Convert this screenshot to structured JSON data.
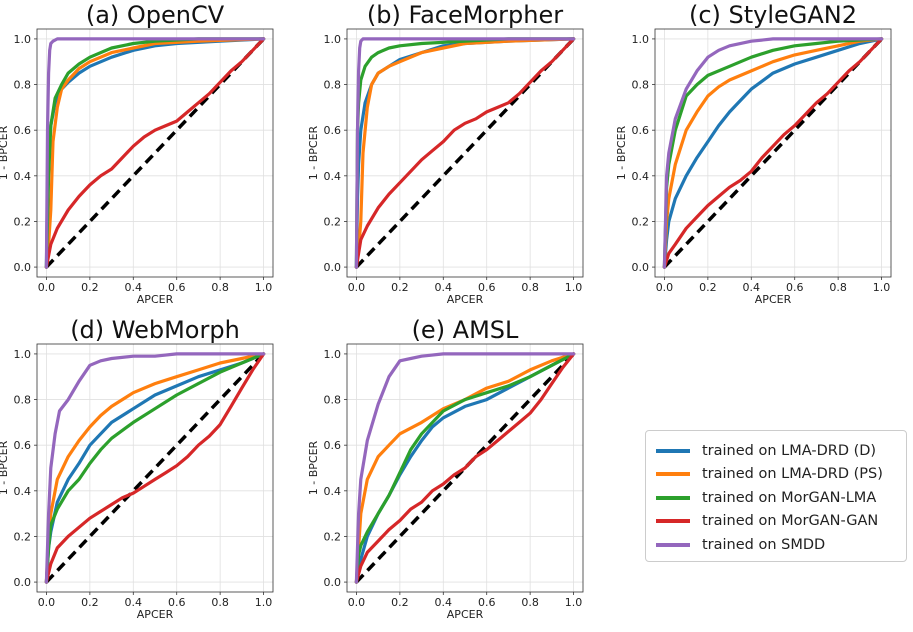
{
  "figure": {
    "xlabel": "APCER",
    "ylabel": "1 - BPCER",
    "ticks": [
      "0.0",
      "0.2",
      "0.4",
      "0.6",
      "0.8",
      "1.0"
    ]
  },
  "legend": [
    {
      "label": "trained on LMA-DRD (D)",
      "color": "#1f77b4"
    },
    {
      "label": "trained on LMA-DRD (PS)",
      "color": "#ff7f0e"
    },
    {
      "label": "trained on MorGAN-LMA",
      "color": "#2ca02c"
    },
    {
      "label": "trained on MorGAN-GAN",
      "color": "#d62728"
    },
    {
      "label": "trained on SMDD",
      "color": "#9467bd"
    }
  ],
  "chart_data": [
    {
      "type": "line",
      "title": "(a) OpenCV",
      "xlabel": "APCER",
      "ylabel": "1 - BPCER",
      "xlim": [
        0,
        1
      ],
      "ylim": [
        0,
        1
      ],
      "series": [
        {
          "name": "trained on LMA-DRD (D)",
          "color": "#1f77b4",
          "x": [
            0,
            0.005,
            0.01,
            0.02,
            0.04,
            0.07,
            0.1,
            0.15,
            0.2,
            0.3,
            0.4,
            0.5,
            0.6,
            0.8,
            1.0
          ],
          "y": [
            0,
            0.35,
            0.5,
            0.62,
            0.72,
            0.78,
            0.81,
            0.85,
            0.88,
            0.92,
            0.95,
            0.97,
            0.98,
            0.99,
            1.0
          ]
        },
        {
          "name": "trained on LMA-DRD (PS)",
          "color": "#ff7f0e",
          "x": [
            0,
            0.01,
            0.02,
            0.03,
            0.05,
            0.07,
            0.1,
            0.15,
            0.2,
            0.3,
            0.4,
            0.5,
            0.7,
            1.0
          ],
          "y": [
            0,
            0.1,
            0.25,
            0.55,
            0.7,
            0.78,
            0.82,
            0.87,
            0.9,
            0.94,
            0.96,
            0.98,
            0.99,
            1.0
          ]
        },
        {
          "name": "trained on MorGAN-LMA",
          "color": "#2ca02c",
          "x": [
            0,
            0.01,
            0.02,
            0.04,
            0.07,
            0.1,
            0.15,
            0.2,
            0.3,
            0.4,
            0.5,
            0.7,
            1.0
          ],
          "y": [
            0,
            0.4,
            0.62,
            0.74,
            0.8,
            0.85,
            0.89,
            0.92,
            0.96,
            0.98,
            0.99,
            1.0,
            1.0
          ]
        },
        {
          "name": "trained on MorGAN-GAN",
          "color": "#d62728",
          "x": [
            0,
            0.02,
            0.05,
            0.1,
            0.15,
            0.2,
            0.25,
            0.3,
            0.35,
            0.4,
            0.45,
            0.5,
            0.55,
            0.6,
            0.65,
            0.7,
            0.75,
            0.8,
            0.85,
            0.9,
            0.95,
            1.0
          ],
          "y": [
            0,
            0.1,
            0.17,
            0.25,
            0.31,
            0.36,
            0.4,
            0.43,
            0.48,
            0.53,
            0.57,
            0.6,
            0.62,
            0.64,
            0.68,
            0.72,
            0.76,
            0.81,
            0.86,
            0.9,
            0.95,
            1.0
          ]
        },
        {
          "name": "trained on SMDD",
          "color": "#9467bd",
          "x": [
            0,
            0.005,
            0.01,
            0.015,
            0.02,
            0.03,
            0.05,
            0.1,
            0.3,
            1.0
          ],
          "y": [
            0,
            0.6,
            0.85,
            0.95,
            0.98,
            0.99,
            1.0,
            1.0,
            1.0,
            1.0
          ]
        }
      ]
    },
    {
      "type": "line",
      "title": "(b) FaceMorpher",
      "xlabel": "APCER",
      "ylabel": "1 - BPCER",
      "xlim": [
        0,
        1
      ],
      "ylim": [
        0,
        1
      ],
      "series": [
        {
          "name": "trained on LMA-DRD (D)",
          "color": "#1f77b4",
          "x": [
            0,
            0.005,
            0.01,
            0.02,
            0.04,
            0.07,
            0.1,
            0.15,
            0.2,
            0.3,
            0.4,
            0.5,
            0.7,
            1.0
          ],
          "y": [
            0,
            0.3,
            0.45,
            0.6,
            0.72,
            0.8,
            0.85,
            0.88,
            0.91,
            0.94,
            0.97,
            0.98,
            0.99,
            1.0
          ]
        },
        {
          "name": "trained on LMA-DRD (PS)",
          "color": "#ff7f0e",
          "x": [
            0,
            0.01,
            0.02,
            0.03,
            0.05,
            0.07,
            0.1,
            0.15,
            0.2,
            0.3,
            0.4,
            0.5,
            0.7,
            1.0
          ],
          "y": [
            0,
            0.08,
            0.2,
            0.5,
            0.7,
            0.8,
            0.85,
            0.88,
            0.9,
            0.94,
            0.96,
            0.98,
            0.99,
            1.0
          ]
        },
        {
          "name": "trained on MorGAN-LMA",
          "color": "#2ca02c",
          "x": [
            0,
            0.005,
            0.01,
            0.02,
            0.04,
            0.07,
            0.1,
            0.15,
            0.2,
            0.3,
            0.5,
            0.7,
            1.0
          ],
          "y": [
            0,
            0.6,
            0.72,
            0.82,
            0.88,
            0.92,
            0.94,
            0.96,
            0.97,
            0.98,
            0.99,
            1.0,
            1.0
          ]
        },
        {
          "name": "trained on MorGAN-GAN",
          "color": "#d62728",
          "x": [
            0,
            0.02,
            0.05,
            0.1,
            0.15,
            0.2,
            0.25,
            0.3,
            0.35,
            0.4,
            0.45,
            0.5,
            0.55,
            0.6,
            0.65,
            0.7,
            0.75,
            0.8,
            0.85,
            0.9,
            0.95,
            1.0
          ],
          "y": [
            0,
            0.12,
            0.18,
            0.26,
            0.32,
            0.37,
            0.42,
            0.47,
            0.51,
            0.55,
            0.6,
            0.63,
            0.65,
            0.68,
            0.7,
            0.72,
            0.76,
            0.81,
            0.86,
            0.9,
            0.95,
            1.0
          ]
        },
        {
          "name": "trained on SMDD",
          "color": "#9467bd",
          "x": [
            0,
            0.005,
            0.01,
            0.015,
            0.02,
            0.03,
            0.05,
            0.1,
            0.3,
            1.0
          ],
          "y": [
            0,
            0.6,
            0.86,
            0.96,
            0.99,
            1.0,
            1.0,
            1.0,
            1.0,
            1.0
          ]
        }
      ]
    },
    {
      "type": "line",
      "title": "(c) StyleGAN2",
      "xlabel": "APCER",
      "ylabel": "1 - BPCER",
      "xlim": [
        0,
        1
      ],
      "ylim": [
        0,
        1
      ],
      "series": [
        {
          "name": "trained on LMA-DRD (D)",
          "color": "#1f77b4",
          "x": [
            0,
            0.01,
            0.02,
            0.05,
            0.1,
            0.15,
            0.2,
            0.25,
            0.3,
            0.35,
            0.4,
            0.5,
            0.6,
            0.7,
            0.8,
            0.9,
            1.0
          ],
          "y": [
            0,
            0.12,
            0.2,
            0.3,
            0.4,
            0.48,
            0.55,
            0.62,
            0.68,
            0.73,
            0.78,
            0.85,
            0.89,
            0.92,
            0.95,
            0.98,
            1.0
          ]
        },
        {
          "name": "trained on LMA-DRD (PS)",
          "color": "#ff7f0e",
          "x": [
            0,
            0.01,
            0.02,
            0.05,
            0.1,
            0.15,
            0.2,
            0.25,
            0.3,
            0.4,
            0.5,
            0.6,
            0.7,
            0.8,
            0.9,
            1.0
          ],
          "y": [
            0,
            0.2,
            0.3,
            0.45,
            0.6,
            0.68,
            0.75,
            0.79,
            0.82,
            0.86,
            0.9,
            0.93,
            0.95,
            0.97,
            0.99,
            1.0
          ]
        },
        {
          "name": "trained on MorGAN-LMA",
          "color": "#2ca02c",
          "x": [
            0,
            0.01,
            0.02,
            0.05,
            0.1,
            0.15,
            0.2,
            0.3,
            0.4,
            0.5,
            0.6,
            0.7,
            0.8,
            1.0
          ],
          "y": [
            0,
            0.35,
            0.45,
            0.6,
            0.75,
            0.8,
            0.84,
            0.88,
            0.92,
            0.95,
            0.97,
            0.98,
            0.99,
            1.0
          ]
        },
        {
          "name": "trained on MorGAN-GAN",
          "color": "#d62728",
          "x": [
            0,
            0.02,
            0.05,
            0.1,
            0.15,
            0.2,
            0.25,
            0.3,
            0.35,
            0.4,
            0.45,
            0.5,
            0.55,
            0.6,
            0.65,
            0.7,
            0.75,
            0.8,
            0.85,
            0.9,
            0.95,
            1.0
          ],
          "y": [
            0,
            0.06,
            0.1,
            0.17,
            0.22,
            0.27,
            0.31,
            0.35,
            0.38,
            0.42,
            0.48,
            0.53,
            0.58,
            0.62,
            0.67,
            0.72,
            0.76,
            0.81,
            0.86,
            0.9,
            0.95,
            1.0
          ]
        },
        {
          "name": "trained on SMDD",
          "color": "#9467bd",
          "x": [
            0,
            0.01,
            0.02,
            0.05,
            0.1,
            0.15,
            0.2,
            0.25,
            0.3,
            0.4,
            0.5,
            0.6,
            1.0
          ],
          "y": [
            0,
            0.4,
            0.5,
            0.65,
            0.78,
            0.86,
            0.92,
            0.95,
            0.97,
            0.99,
            1.0,
            1.0,
            1.0
          ]
        }
      ]
    },
    {
      "type": "line",
      "title": "(d) WebMorph",
      "xlabel": "APCER",
      "ylabel": "1 - BPCER",
      "xlim": [
        0,
        1
      ],
      "ylim": [
        0,
        1
      ],
      "series": [
        {
          "name": "trained on LMA-DRD (D)",
          "color": "#1f77b4",
          "x": [
            0,
            0.01,
            0.02,
            0.05,
            0.1,
            0.15,
            0.2,
            0.25,
            0.3,
            0.4,
            0.5,
            0.6,
            0.7,
            0.8,
            0.9,
            0.95,
            1.0
          ],
          "y": [
            0,
            0.15,
            0.22,
            0.35,
            0.45,
            0.52,
            0.6,
            0.65,
            0.7,
            0.76,
            0.82,
            0.86,
            0.9,
            0.93,
            0.96,
            0.98,
            1.0
          ]
        },
        {
          "name": "trained on LMA-DRD (PS)",
          "color": "#ff7f0e",
          "x": [
            0,
            0.01,
            0.02,
            0.05,
            0.1,
            0.15,
            0.2,
            0.25,
            0.3,
            0.4,
            0.5,
            0.6,
            0.7,
            0.8,
            0.9,
            1.0
          ],
          "y": [
            0,
            0.2,
            0.3,
            0.45,
            0.55,
            0.62,
            0.68,
            0.73,
            0.77,
            0.83,
            0.87,
            0.9,
            0.93,
            0.96,
            0.98,
            1.0
          ]
        },
        {
          "name": "trained on MorGAN-LMA",
          "color": "#2ca02c",
          "x": [
            0,
            0.01,
            0.02,
            0.05,
            0.1,
            0.15,
            0.2,
            0.25,
            0.3,
            0.4,
            0.5,
            0.6,
            0.7,
            0.8,
            0.9,
            1.0
          ],
          "y": [
            0,
            0.15,
            0.25,
            0.32,
            0.4,
            0.45,
            0.52,
            0.58,
            0.63,
            0.7,
            0.76,
            0.82,
            0.87,
            0.92,
            0.96,
            1.0
          ]
        },
        {
          "name": "trained on MorGAN-GAN",
          "color": "#d62728",
          "x": [
            0,
            0.02,
            0.05,
            0.1,
            0.15,
            0.2,
            0.25,
            0.3,
            0.35,
            0.4,
            0.45,
            0.5,
            0.55,
            0.6,
            0.65,
            0.7,
            0.75,
            0.8,
            0.85,
            0.9,
            0.95,
            1.0
          ],
          "y": [
            0,
            0.08,
            0.15,
            0.2,
            0.24,
            0.28,
            0.31,
            0.34,
            0.37,
            0.39,
            0.42,
            0.45,
            0.48,
            0.51,
            0.55,
            0.6,
            0.64,
            0.69,
            0.77,
            0.85,
            0.93,
            1.0
          ]
        },
        {
          "name": "trained on SMDD",
          "color": "#9467bd",
          "x": [
            0,
            0.01,
            0.02,
            0.04,
            0.06,
            0.1,
            0.15,
            0.2,
            0.25,
            0.3,
            0.4,
            0.5,
            0.6,
            0.8,
            1.0
          ],
          "y": [
            0,
            0.3,
            0.5,
            0.65,
            0.75,
            0.8,
            0.88,
            0.95,
            0.97,
            0.98,
            0.99,
            0.99,
            1.0,
            1.0,
            1.0
          ]
        }
      ]
    },
    {
      "type": "line",
      "title": "(e) AMSL",
      "xlabel": "APCER",
      "ylabel": "1 - BPCER",
      "xlim": [
        0,
        1
      ],
      "ylim": [
        0,
        1
      ],
      "series": [
        {
          "name": "trained on LMA-DRD (D)",
          "color": "#1f77b4",
          "x": [
            0,
            0.01,
            0.02,
            0.05,
            0.1,
            0.15,
            0.2,
            0.25,
            0.3,
            0.35,
            0.4,
            0.5,
            0.6,
            0.7,
            0.8,
            0.9,
            1.0
          ],
          "y": [
            0,
            0.05,
            0.1,
            0.2,
            0.3,
            0.38,
            0.47,
            0.55,
            0.62,
            0.68,
            0.72,
            0.77,
            0.8,
            0.85,
            0.9,
            0.95,
            1.0
          ]
        },
        {
          "name": "trained on LMA-DRD (PS)",
          "color": "#ff7f0e",
          "x": [
            0,
            0.01,
            0.02,
            0.05,
            0.1,
            0.15,
            0.2,
            0.3,
            0.4,
            0.5,
            0.6,
            0.7,
            0.8,
            0.9,
            1.0
          ],
          "y": [
            0,
            0.15,
            0.3,
            0.45,
            0.55,
            0.6,
            0.65,
            0.7,
            0.76,
            0.8,
            0.85,
            0.88,
            0.93,
            0.97,
            1.0
          ]
        },
        {
          "name": "trained on MorGAN-LMA",
          "color": "#2ca02c",
          "x": [
            0,
            0.01,
            0.02,
            0.05,
            0.1,
            0.15,
            0.2,
            0.25,
            0.3,
            0.4,
            0.5,
            0.6,
            0.7,
            0.8,
            0.9,
            1.0
          ],
          "y": [
            0,
            0.12,
            0.16,
            0.22,
            0.3,
            0.38,
            0.48,
            0.58,
            0.65,
            0.75,
            0.8,
            0.83,
            0.86,
            0.9,
            0.95,
            1.0
          ]
        },
        {
          "name": "trained on MorGAN-GAN",
          "color": "#d62728",
          "x": [
            0,
            0.02,
            0.05,
            0.1,
            0.15,
            0.2,
            0.25,
            0.3,
            0.35,
            0.4,
            0.45,
            0.5,
            0.55,
            0.6,
            0.65,
            0.7,
            0.75,
            0.8,
            0.85,
            0.9,
            0.95,
            1.0
          ],
          "y": [
            0,
            0.07,
            0.13,
            0.18,
            0.23,
            0.27,
            0.32,
            0.35,
            0.4,
            0.43,
            0.47,
            0.5,
            0.55,
            0.58,
            0.62,
            0.66,
            0.7,
            0.74,
            0.8,
            0.87,
            0.94,
            1.0
          ]
        },
        {
          "name": "trained on SMDD",
          "color": "#9467bd",
          "x": [
            0,
            0.01,
            0.02,
            0.05,
            0.1,
            0.15,
            0.2,
            0.25,
            0.3,
            0.4,
            0.5,
            0.6,
            0.8,
            1.0
          ],
          "y": [
            0,
            0.3,
            0.45,
            0.62,
            0.78,
            0.9,
            0.97,
            0.98,
            0.99,
            1.0,
            1.0,
            1.0,
            1.0,
            1.0
          ]
        }
      ]
    }
  ]
}
